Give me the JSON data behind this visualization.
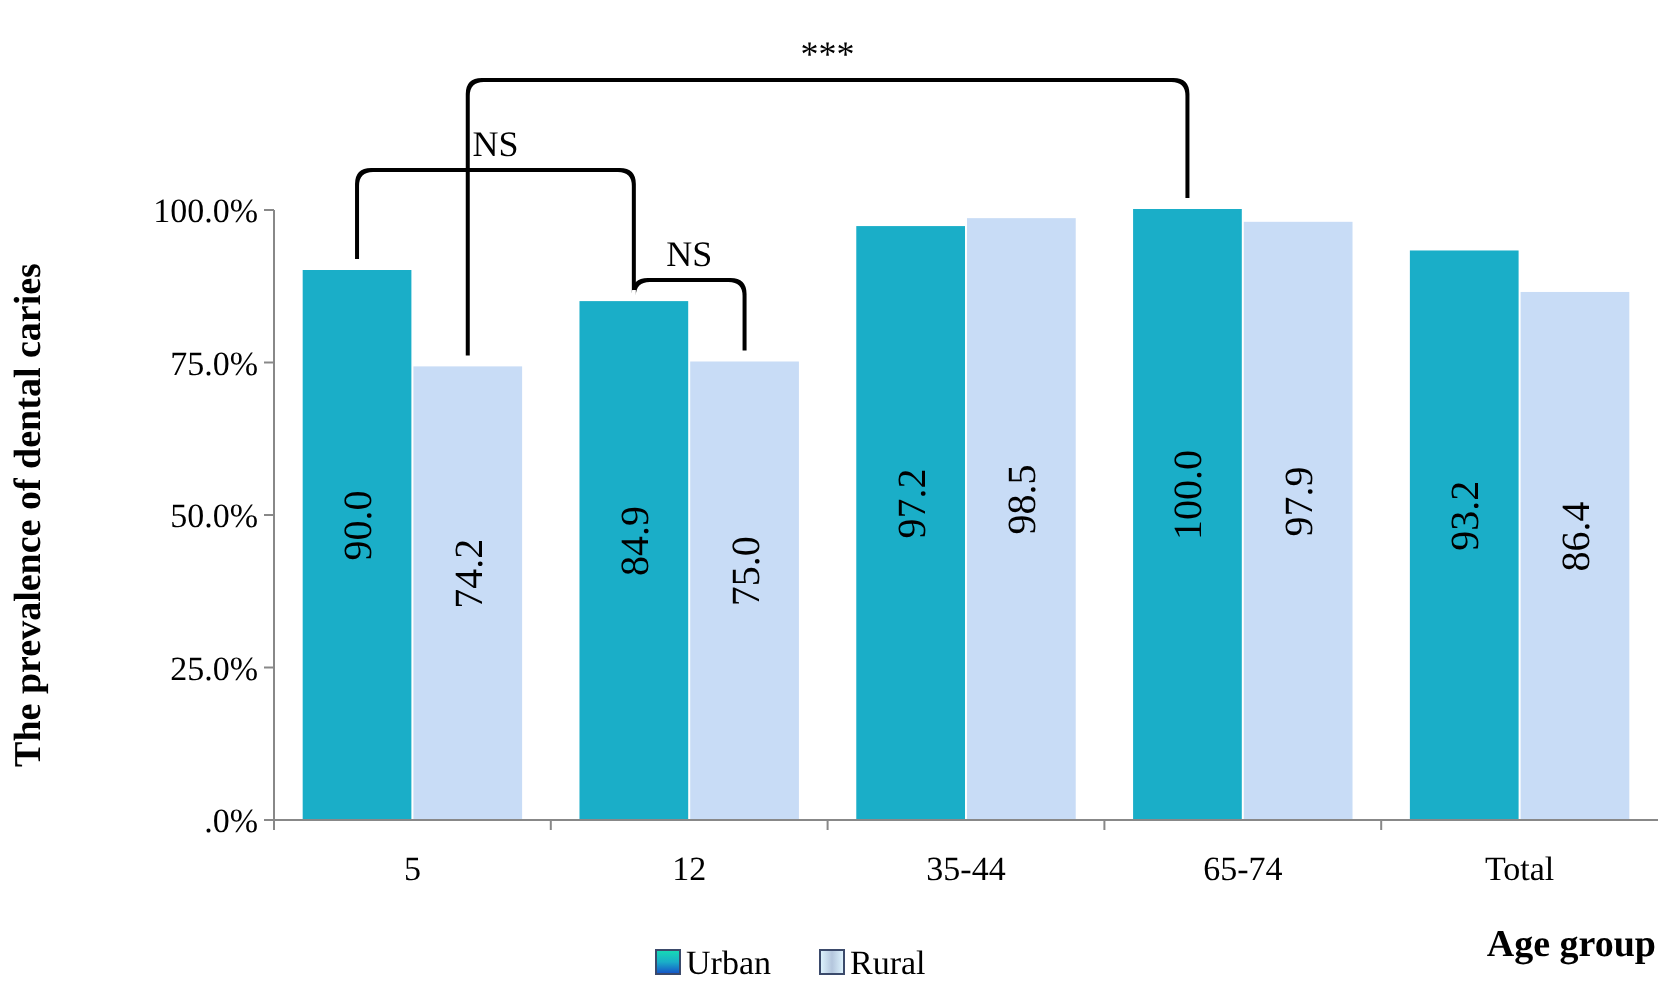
{
  "chart_data": {
    "type": "bar",
    "xlabel": "Age group",
    "ylabel": "The prevalence of dental caries",
    "categories": [
      "5",
      "12",
      "35-44",
      "65-74",
      "Total"
    ],
    "series": [
      {
        "name": "Urban",
        "color": "#1aaec8",
        "values": [
          90.0,
          84.9,
          97.2,
          100.0,
          93.2
        ],
        "value_labels": [
          "90.0",
          "84.9",
          "97.2",
          "100.0",
          "93.2"
        ]
      },
      {
        "name": "Rural",
        "color": "#c8dcf6",
        "values": [
          74.2,
          75.0,
          98.5,
          97.9,
          86.4
        ],
        "value_labels": [
          "74.2",
          "75.0",
          "98.5",
          "97.9",
          "86.4"
        ]
      }
    ],
    "ylim": [
      0,
      100
    ],
    "yticks": [
      {
        "value": 0,
        "label": ".0%"
      },
      {
        "value": 25,
        "label": "25.0%"
      },
      {
        "value": 50,
        "label": "50.0%"
      },
      {
        "value": 75,
        "label": "75.0%"
      },
      {
        "value": 100,
        "label": "100.0%"
      }
    ],
    "grid": false,
    "legend": "bottom",
    "annotations": [
      "NS",
      "NS",
      "***"
    ]
  }
}
